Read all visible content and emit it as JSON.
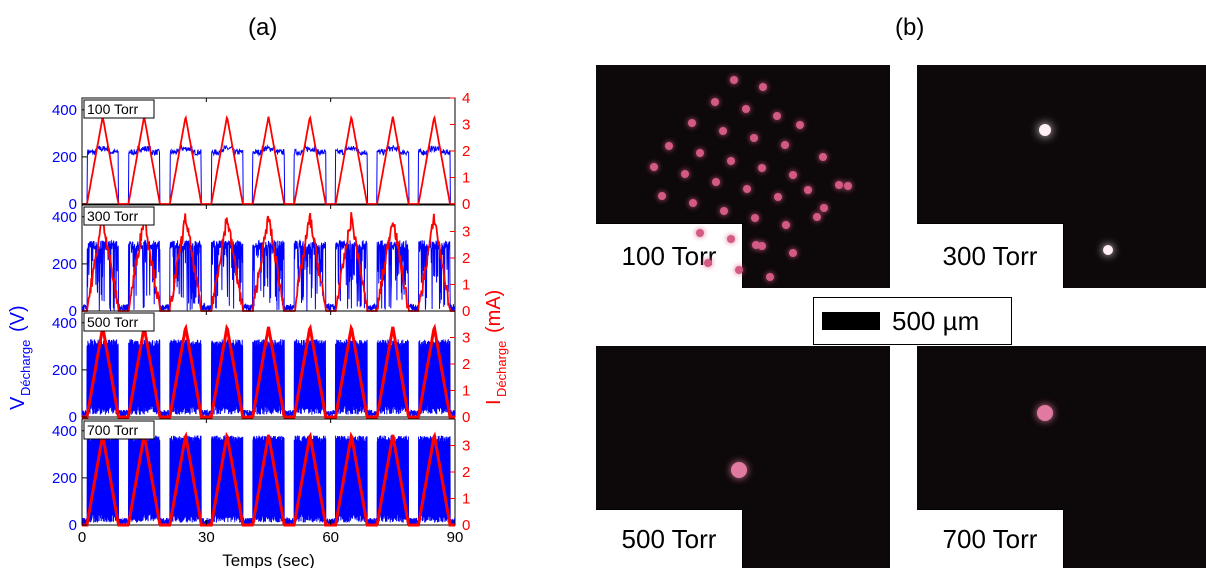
{
  "panels": {
    "a_label": "(a)",
    "b_label": "(b)"
  },
  "chart_data": {
    "type": "line",
    "xlabel": "Temps (sec)",
    "xlim": [
      0,
      90
    ],
    "xticks": [
      0,
      30,
      60,
      90
    ],
    "left_ylabel_main": "V",
    "left_ylabel_sub": "Décharge",
    "left_ylabel_unit": "(V)",
    "right_ylabel_main": "I",
    "right_ylabel_sub": "Décharge",
    "right_ylabel_unit": "(mA)",
    "colors": {
      "voltage": "#0000ff",
      "current": "#ff0000"
    },
    "period_sec": 10,
    "subplots": [
      {
        "pressure_label": "100 Torr",
        "v_ylim": [
          0,
          450
        ],
        "v_ticks": [
          0,
          200,
          400
        ],
        "i_ylim": [
          0,
          4
        ],
        "i_ticks": [
          0,
          1,
          2,
          3,
          4
        ],
        "v_plateau": 220,
        "v_spike_max": 260,
        "i_peak": 3.3
      },
      {
        "pressure_label": "300 Torr",
        "v_ylim": [
          0,
          450
        ],
        "v_ticks": [
          0,
          200,
          400
        ],
        "i_ylim": [
          0,
          4
        ],
        "i_ticks": [
          0,
          1,
          2,
          3
        ],
        "v_plateau": 280,
        "v_spike_max": 320,
        "i_peak": 3.5
      },
      {
        "pressure_label": "500 Torr",
        "v_ylim": [
          0,
          450
        ],
        "v_ticks": [
          0,
          200,
          400
        ],
        "i_ylim": [
          0,
          4
        ],
        "i_ticks": [
          0,
          1,
          2,
          3
        ],
        "v_plateau": 330,
        "v_spike_max": 350,
        "i_peak": 3.4
      },
      {
        "pressure_label": "700 Torr",
        "v_ylim": [
          0,
          450
        ],
        "v_ticks": [
          0,
          200,
          400
        ],
        "i_ylim": [
          0,
          4
        ],
        "i_ticks": [
          0,
          1,
          2,
          3
        ],
        "v_plateau": 380,
        "v_spike_max": 390,
        "i_peak": 3.4
      }
    ]
  },
  "photos": [
    {
      "label": "100 Torr"
    },
    {
      "label": "300 Torr"
    },
    {
      "label": "500 Torr"
    },
    {
      "label": "700 Torr"
    }
  ],
  "scale_bar": {
    "label": "500 µm"
  }
}
